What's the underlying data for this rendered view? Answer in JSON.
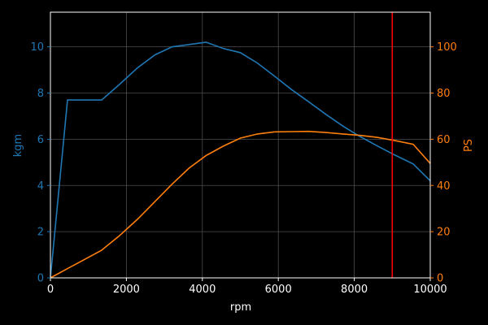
{
  "chart_data": {
    "type": "line",
    "title": "",
    "xlabel": "rpm",
    "ylabel_left": "kgm",
    "ylabel_right": "PS",
    "xlim": [
      0,
      10000
    ],
    "ylim_left": [
      0,
      11.5
    ],
    "ylim_right": [
      0,
      115
    ],
    "x_ticks": [
      0,
      2000,
      4000,
      6000,
      8000,
      10000
    ],
    "x_tick_labels": [
      "0",
      "2000",
      "4000",
      "6000",
      "8000",
      "10000"
    ],
    "y_left_ticks": [
      0,
      2,
      4,
      6,
      8,
      10
    ],
    "y_left_tick_labels": [
      "0",
      "2",
      "4",
      "6",
      "8",
      "10"
    ],
    "y_right_ticks": [
      0,
      20,
      40,
      60,
      80,
      100
    ],
    "y_right_tick_labels": [
      "0",
      "20",
      "40",
      "60",
      "80",
      "100"
    ],
    "grid": true,
    "series": [
      {
        "axis": "left",
        "color": "#1f77b4",
        "x": [
          0,
          450,
          1350,
          1800,
          2300,
          2750,
          3200,
          3650,
          4100,
          4550,
          5000,
          5450,
          5900,
          6350,
          6800,
          7250,
          7700,
          8150,
          8600,
          9050,
          9550,
          10000
        ],
        "y": [
          0,
          7.7,
          7.7,
          8.35,
          9.1,
          9.65,
          10.0,
          10.1,
          10.2,
          9.93,
          9.75,
          9.3,
          8.73,
          8.15,
          7.62,
          7.08,
          6.57,
          6.12,
          5.72,
          5.33,
          4.93,
          4.2
        ]
      },
      {
        "axis": "right",
        "color": "#ff7f0e",
        "x": [
          0,
          450,
          900,
          1350,
          1800,
          2300,
          2750,
          3200,
          3650,
          4100,
          4550,
          5000,
          5450,
          5900,
          6350,
          6800,
          7250,
          7700,
          8150,
          8600,
          9050,
          9550,
          10000
        ],
        "y": [
          0,
          4,
          8,
          12,
          18,
          25.5,
          33,
          40.5,
          47.5,
          53,
          57,
          60.5,
          62.3,
          63.2,
          63.3,
          63.4,
          62.9,
          62.3,
          61.7,
          60.8,
          59.5,
          57.8,
          49.5
        ]
      }
    ],
    "vline": {
      "x": 9000,
      "color": "#ff0000"
    },
    "colors": {
      "background": "#000000",
      "axes": "#ffffff",
      "grid": "#4d4d4d",
      "left_axis": "#1f77b4",
      "right_axis": "#ff7f0e"
    }
  }
}
